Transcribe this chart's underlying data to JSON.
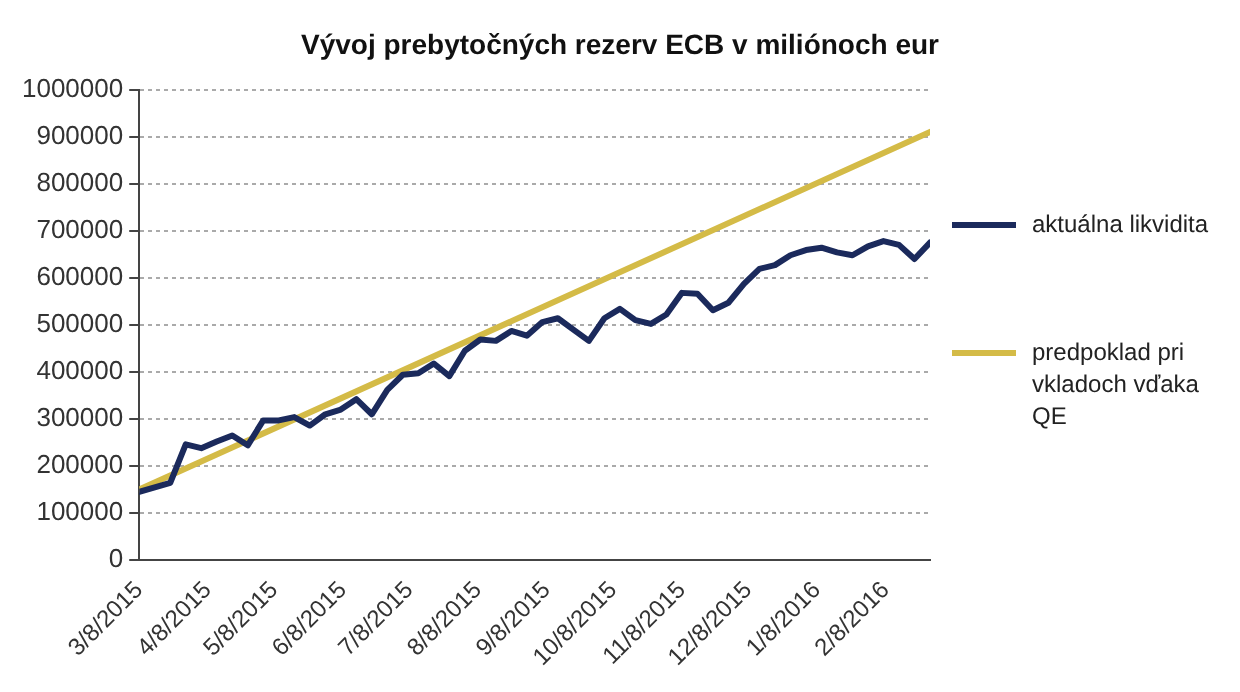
{
  "chart_data": {
    "type": "line",
    "title": "Vývoj prebytočných rezerv ECB v miliónoch eur",
    "xlim": [
      "2015-03-08",
      "2016-02-28"
    ],
    "xticks": [
      {
        "value": "2015-03-08",
        "label": "3/8/2015"
      },
      {
        "value": "2015-04-08",
        "label": "4/8/2015"
      },
      {
        "value": "2015-05-08",
        "label": "5/8/2015"
      },
      {
        "value": "2015-06-08",
        "label": "6/8/2015"
      },
      {
        "value": "2015-07-08",
        "label": "7/8/2015"
      },
      {
        "value": "2015-08-08",
        "label": "8/8/2015"
      },
      {
        "value": "2015-09-08",
        "label": "9/8/2015"
      },
      {
        "value": "2015-10-08",
        "label": "10/8/2015"
      },
      {
        "value": "2015-11-08",
        "label": "11/8/2015"
      },
      {
        "value": "2015-12-08",
        "label": "12/8/2015"
      },
      {
        "value": "2016-01-08",
        "label": "1/8/2016"
      },
      {
        "value": "2016-02-08",
        "label": "2/8/2016"
      }
    ],
    "ylim": [
      0,
      1000000
    ],
    "yticks": [
      0,
      100000,
      200000,
      300000,
      400000,
      500000,
      600000,
      700000,
      800000,
      900000,
      1000000
    ],
    "grid": "y",
    "legend": "right",
    "marker": "none",
    "line_style": "solid",
    "series": [
      {
        "name": "aktuálna likvidita",
        "color": "#1b2a5c",
        "x": [
          "2015-03-08",
          "2015-03-22",
          "2015-03-29",
          "2015-04-05",
          "2015-04-12",
          "2015-04-19",
          "2015-04-26",
          "2015-05-03",
          "2015-05-10",
          "2015-05-17",
          "2015-05-24",
          "2015-05-31",
          "2015-06-07",
          "2015-06-14",
          "2015-06-21",
          "2015-06-28",
          "2015-07-05",
          "2015-07-12",
          "2015-07-19",
          "2015-07-26",
          "2015-08-02",
          "2015-08-09",
          "2015-08-16",
          "2015-08-23",
          "2015-08-30",
          "2015-09-06",
          "2015-09-13",
          "2015-09-20",
          "2015-09-27",
          "2015-10-04",
          "2015-10-11",
          "2015-10-18",
          "2015-10-25",
          "2015-11-01",
          "2015-11-08",
          "2015-11-15",
          "2015-11-22",
          "2015-11-29",
          "2015-12-06",
          "2015-12-13",
          "2015-12-20",
          "2015-12-27",
          "2016-01-03",
          "2016-01-10",
          "2016-01-17",
          "2016-01-24",
          "2016-01-31",
          "2016-02-07",
          "2016-02-14",
          "2016-02-21",
          "2016-02-28"
        ],
        "values": [
          145000,
          164000,
          246000,
          238000,
          252000,
          265000,
          244000,
          297000,
          297000,
          304000,
          286000,
          310000,
          320000,
          342000,
          310000,
          362000,
          394000,
          397000,
          418000,
          391000,
          445000,
          469000,
          466000,
          487000,
          477000,
          506000,
          514000,
          490000,
          466000,
          514000,
          534000,
          510000,
          502000,
          522000,
          568000,
          566000,
          531000,
          547000,
          587000,
          619000,
          627000,
          648000,
          659000,
          664000,
          654000,
          648000,
          667000,
          678000,
          670000,
          640000,
          675000
        ]
      },
      {
        "name": "predpoklad pri vkladoch vďaka QE",
        "color": "#d4bb47",
        "x": [
          "2015-03-08",
          "2016-02-28"
        ],
        "values": [
          150000,
          910000
        ]
      }
    ]
  }
}
